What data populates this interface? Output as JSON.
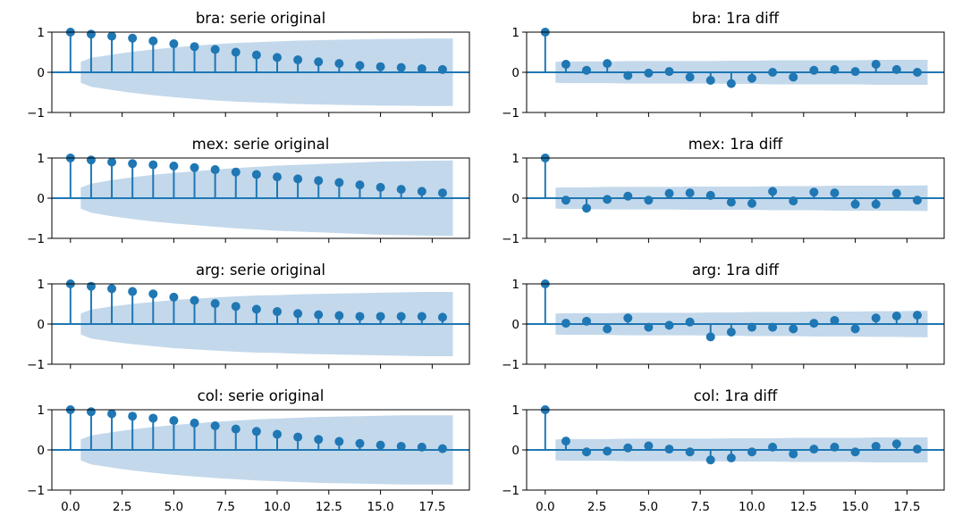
{
  "figure": {
    "series_color": "#1f77b4",
    "band_color": "#c3d8eb"
  },
  "chart_data": [
    {
      "type": "scatter",
      "title": "bra: serie original",
      "x": [
        0,
        1,
        2,
        3,
        4,
        5,
        6,
        7,
        8,
        9,
        10,
        11,
        12,
        13,
        14,
        15,
        16,
        17,
        18
      ],
      "values": [
        1.0,
        0.95,
        0.9,
        0.85,
        0.78,
        0.71,
        0.64,
        0.57,
        0.5,
        0.43,
        0.37,
        0.31,
        0.26,
        0.22,
        0.17,
        0.14,
        0.12,
        0.09,
        0.07
      ],
      "confint_upper": [
        0.26,
        0.36,
        0.44,
        0.51,
        0.57,
        0.62,
        0.66,
        0.7,
        0.73,
        0.75,
        0.77,
        0.79,
        0.8,
        0.81,
        0.82,
        0.83,
        0.83,
        0.84,
        0.84
      ],
      "xlim": [
        -0.9,
        19.3
      ],
      "ylim": [
        -1,
        1
      ],
      "yticks": [
        -1,
        0,
        1
      ],
      "xticks": [
        0,
        2.5,
        5,
        7.5,
        10,
        12.5,
        15,
        17.5
      ],
      "xtick_labels": [],
      "ytick_labels": [
        "−1",
        "0",
        "1"
      ]
    },
    {
      "type": "scatter",
      "title": "bra: 1ra diff",
      "x": [
        0,
        1,
        2,
        3,
        4,
        5,
        6,
        7,
        8,
        9,
        10,
        11,
        12,
        13,
        14,
        15,
        16,
        17,
        18
      ],
      "values": [
        1.0,
        0.2,
        0.05,
        0.22,
        -0.08,
        -0.02,
        0.02,
        -0.12,
        -0.2,
        -0.28,
        -0.15,
        0.0,
        -0.12,
        0.05,
        0.07,
        0.02,
        0.2,
        0.07,
        0.0
      ],
      "confint_upper": [
        0.26,
        0.27,
        0.27,
        0.27,
        0.28,
        0.28,
        0.28,
        0.28,
        0.28,
        0.29,
        0.29,
        0.3,
        0.3,
        0.3,
        0.3,
        0.3,
        0.31,
        0.31,
        0.31
      ],
      "xlim": [
        -0.9,
        19.3
      ],
      "ylim": [
        -1,
        1
      ],
      "yticks": [
        -1,
        0,
        1
      ],
      "xticks": [
        0,
        2.5,
        5,
        7.5,
        10,
        12.5,
        15,
        17.5
      ],
      "xtick_labels": [],
      "ytick_labels": [
        "−1",
        "0",
        "1"
      ]
    },
    {
      "type": "scatter",
      "title": "mex: serie original",
      "x": [
        0,
        1,
        2,
        3,
        4,
        5,
        6,
        7,
        8,
        9,
        10,
        11,
        12,
        13,
        14,
        15,
        16,
        17,
        18
      ],
      "values": [
        1.0,
        0.95,
        0.9,
        0.86,
        0.83,
        0.8,
        0.76,
        0.71,
        0.65,
        0.59,
        0.53,
        0.48,
        0.44,
        0.39,
        0.33,
        0.27,
        0.22,
        0.17,
        0.13
      ],
      "confint_upper": [
        0.26,
        0.36,
        0.45,
        0.52,
        0.58,
        0.63,
        0.67,
        0.71,
        0.75,
        0.78,
        0.81,
        0.83,
        0.85,
        0.87,
        0.89,
        0.91,
        0.92,
        0.93,
        0.94
      ],
      "xlim": [
        -0.9,
        19.3
      ],
      "ylim": [
        -1,
        1
      ],
      "yticks": [
        -1,
        0,
        1
      ],
      "xticks": [
        0,
        2.5,
        5,
        7.5,
        10,
        12.5,
        15,
        17.5
      ],
      "xtick_labels": [],
      "ytick_labels": [
        "−1",
        "0",
        "1"
      ]
    },
    {
      "type": "scatter",
      "title": "mex: 1ra diff",
      "x": [
        0,
        1,
        2,
        3,
        4,
        5,
        6,
        7,
        8,
        9,
        10,
        11,
        12,
        13,
        14,
        15,
        16,
        17,
        18
      ],
      "values": [
        1.0,
        -0.05,
        -0.25,
        -0.03,
        0.05,
        -0.05,
        0.12,
        0.13,
        0.07,
        -0.1,
        -0.13,
        0.17,
        -0.07,
        0.15,
        0.13,
        -0.15,
        -0.15,
        0.12,
        -0.05
      ],
      "confint_upper": [
        0.26,
        0.27,
        0.27,
        0.28,
        0.28,
        0.28,
        0.28,
        0.29,
        0.29,
        0.29,
        0.29,
        0.3,
        0.3,
        0.3,
        0.31,
        0.31,
        0.31,
        0.31,
        0.32
      ],
      "xlim": [
        -0.9,
        19.3
      ],
      "ylim": [
        -1,
        1
      ],
      "yticks": [
        -1,
        0,
        1
      ],
      "xticks": [
        0,
        2.5,
        5,
        7.5,
        10,
        12.5,
        15,
        17.5
      ],
      "xtick_labels": [],
      "ytick_labels": [
        "−1",
        "0",
        "1"
      ]
    },
    {
      "type": "scatter",
      "title": "arg: serie original",
      "x": [
        0,
        1,
        2,
        3,
        4,
        5,
        6,
        7,
        8,
        9,
        10,
        11,
        12,
        13,
        14,
        15,
        16,
        17,
        18
      ],
      "values": [
        1.0,
        0.94,
        0.88,
        0.81,
        0.75,
        0.67,
        0.59,
        0.51,
        0.44,
        0.37,
        0.31,
        0.26,
        0.23,
        0.21,
        0.19,
        0.19,
        0.19,
        0.19,
        0.17
      ],
      "confint_upper": [
        0.26,
        0.36,
        0.44,
        0.5,
        0.55,
        0.6,
        0.63,
        0.66,
        0.69,
        0.71,
        0.72,
        0.74,
        0.75,
        0.76,
        0.77,
        0.78,
        0.79,
        0.8,
        0.8
      ],
      "xlim": [
        -0.9,
        19.3
      ],
      "ylim": [
        -1,
        1
      ],
      "yticks": [
        -1,
        0,
        1
      ],
      "xticks": [
        0,
        2.5,
        5,
        7.5,
        10,
        12.5,
        15,
        17.5
      ],
      "xtick_labels": [],
      "ytick_labels": [
        "−1",
        "0",
        "1"
      ]
    },
    {
      "type": "scatter",
      "title": "arg: 1ra diff",
      "x": [
        0,
        1,
        2,
        3,
        4,
        5,
        6,
        7,
        8,
        9,
        10,
        11,
        12,
        13,
        14,
        15,
        16,
        17,
        18
      ],
      "values": [
        1.0,
        0.02,
        0.07,
        -0.12,
        0.15,
        -0.08,
        -0.03,
        0.05,
        -0.32,
        -0.2,
        -0.08,
        -0.08,
        -0.12,
        0.02,
        0.09,
        -0.12,
        0.15,
        0.2,
        0.22
      ],
      "confint_upper": [
        0.26,
        0.27,
        0.27,
        0.27,
        0.28,
        0.28,
        0.28,
        0.28,
        0.29,
        0.29,
        0.3,
        0.3,
        0.3,
        0.31,
        0.31,
        0.31,
        0.32,
        0.32,
        0.33
      ],
      "xlim": [
        -0.9,
        19.3
      ],
      "ylim": [
        -1,
        1
      ],
      "yticks": [
        -1,
        0,
        1
      ],
      "xticks": [
        0,
        2.5,
        5,
        7.5,
        10,
        12.5,
        15,
        17.5
      ],
      "xtick_labels": [],
      "ytick_labels": [
        "−1",
        "0",
        "1"
      ]
    },
    {
      "type": "scatter",
      "title": "col: serie original",
      "x": [
        0,
        1,
        2,
        3,
        4,
        5,
        6,
        7,
        8,
        9,
        10,
        11,
        12,
        13,
        14,
        15,
        16,
        17,
        18
      ],
      "values": [
        1.0,
        0.95,
        0.9,
        0.84,
        0.79,
        0.73,
        0.67,
        0.6,
        0.52,
        0.46,
        0.39,
        0.32,
        0.26,
        0.21,
        0.16,
        0.12,
        0.09,
        0.07,
        0.03
      ],
      "confint_upper": [
        0.26,
        0.36,
        0.44,
        0.51,
        0.57,
        0.62,
        0.66,
        0.7,
        0.73,
        0.76,
        0.78,
        0.8,
        0.82,
        0.83,
        0.84,
        0.85,
        0.86,
        0.86,
        0.86
      ],
      "xlim": [
        -0.9,
        19.3
      ],
      "ylim": [
        -1,
        1
      ],
      "yticks": [
        -1,
        0,
        1
      ],
      "xticks": [
        0,
        2.5,
        5,
        7.5,
        10,
        12.5,
        15,
        17.5
      ],
      "xtick_labels": [
        "0.0",
        "2.5",
        "5.0",
        "7.5",
        "10.0",
        "12.5",
        "15.0",
        "17.5"
      ],
      "ytick_labels": [
        "−1",
        "0",
        "1"
      ]
    },
    {
      "type": "scatter",
      "title": "col: 1ra diff",
      "x": [
        0,
        1,
        2,
        3,
        4,
        5,
        6,
        7,
        8,
        9,
        10,
        11,
        12,
        13,
        14,
        15,
        16,
        17,
        18
      ],
      "values": [
        1.0,
        0.22,
        -0.05,
        -0.03,
        0.05,
        0.1,
        0.02,
        -0.05,
        -0.25,
        -0.2,
        -0.05,
        0.07,
        -0.1,
        0.02,
        0.07,
        -0.05,
        0.09,
        0.15,
        0.02
      ],
      "confint_upper": [
        0.26,
        0.27,
        0.27,
        0.27,
        0.28,
        0.28,
        0.28,
        0.28,
        0.28,
        0.29,
        0.29,
        0.29,
        0.3,
        0.3,
        0.3,
        0.3,
        0.31,
        0.31,
        0.31
      ],
      "xlim": [
        -0.9,
        19.3
      ],
      "ylim": [
        -1,
        1
      ],
      "yticks": [
        -1,
        0,
        1
      ],
      "xticks": [
        0,
        2.5,
        5,
        7.5,
        10,
        12.5,
        15,
        17.5
      ],
      "xtick_labels": [
        "0.0",
        "2.5",
        "5.0",
        "7.5",
        "10.0",
        "12.5",
        "15.0",
        "17.5"
      ],
      "ytick_labels": [
        "−1",
        "0",
        "1"
      ]
    }
  ]
}
